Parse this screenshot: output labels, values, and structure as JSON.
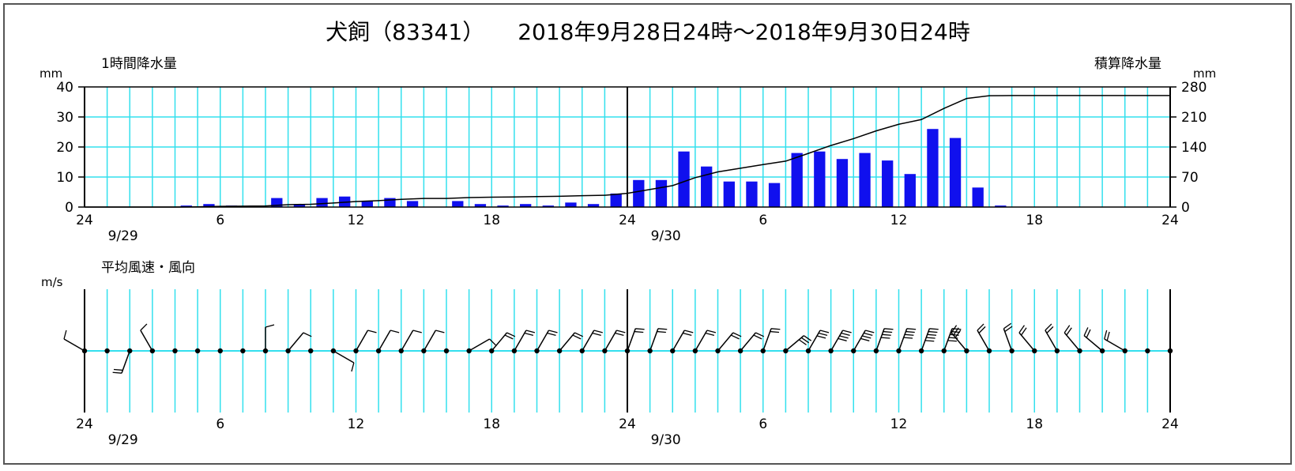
{
  "title": "犬飼（83341）　　2018年9月28日24時～2018年9月30日24時",
  "rain_panel": {
    "left_label": "1時間降水量",
    "right_label": "積算降水量",
    "left_unit": "mm",
    "right_unit": "mm",
    "left_ticks": [
      "0",
      "10",
      "20",
      "30",
      "40"
    ],
    "right_ticks": [
      "0",
      "70",
      "140",
      "210",
      "280"
    ]
  },
  "wind_panel": {
    "label": "平均風速・風向",
    "unit": "m/s"
  },
  "x_axis": {
    "hour_ticks": [
      "24",
      "6",
      "12",
      "18",
      "24",
      "6",
      "12",
      "18",
      "24"
    ],
    "date_labels": [
      "9/29",
      "9/30"
    ]
  },
  "chart_data": [
    {
      "type": "bar",
      "title": "1時間降水量",
      "ylabel": "mm",
      "ylim": [
        0,
        40
      ],
      "x_hours_since_9_29_00": [
        1,
        2,
        3,
        4,
        5,
        6,
        7,
        8,
        9,
        10,
        11,
        12,
        13,
        14,
        15,
        16,
        17,
        18,
        19,
        20,
        21,
        22,
        23,
        24,
        25,
        26,
        27,
        28,
        29,
        30,
        31,
        32,
        33,
        34,
        35,
        36,
        37,
        38,
        39,
        40,
        41,
        42,
        43,
        44,
        45,
        46,
        47,
        48
      ],
      "values": [
        0,
        0,
        0,
        0,
        0.5,
        1,
        0.5,
        0.5,
        3,
        1,
        3,
        3.5,
        2,
        3,
        2,
        0,
        2,
        1,
        0.5,
        1,
        0.5,
        1.5,
        1,
        4.5,
        9,
        9,
        18.5,
        13.5,
        8.5,
        8.5,
        8,
        18,
        18.5,
        16,
        18,
        15.5,
        11,
        26,
        23,
        6.5,
        0.5,
        0,
        0,
        0,
        0,
        0,
        0,
        0
      ]
    },
    {
      "type": "line",
      "title": "積算降水量",
      "ylabel": "mm",
      "ylim": [
        0,
        280
      ],
      "x_hours_since_9_29_00": [
        0,
        1,
        2,
        3,
        4,
        5,
        6,
        7,
        8,
        9,
        10,
        11,
        12,
        13,
        14,
        15,
        16,
        17,
        18,
        19,
        20,
        21,
        22,
        23,
        24,
        25,
        26,
        27,
        28,
        29,
        30,
        31,
        32,
        33,
        34,
        35,
        36,
        37,
        38,
        39,
        40,
        41,
        42,
        43,
        44,
        45,
        46,
        47,
        48
      ],
      "values": [
        0,
        0,
        0,
        0,
        0,
        0.5,
        1.5,
        2,
        2.5,
        5.5,
        6.5,
        9.5,
        13,
        15,
        18,
        20,
        20,
        22,
        23,
        23.5,
        24.5,
        25,
        26.5,
        27.5,
        32,
        41,
        50,
        68.5,
        82,
        90.5,
        99,
        107,
        125,
        143.5,
        159.5,
        177.5,
        193,
        204,
        230,
        253,
        259.5,
        260,
        260,
        260,
        260,
        260,
        260,
        260,
        260
      ]
    },
    {
      "type": "wind-barb",
      "title": "平均風速・風向",
      "ylabel": "m/s",
      "x_hours_since_9_29_00": [
        0,
        1,
        2,
        3,
        4,
        5,
        6,
        7,
        8,
        9,
        10,
        11,
        12,
        13,
        14,
        15,
        16,
        17,
        18,
        19,
        20,
        21,
        22,
        23,
        24,
        25,
        26,
        27,
        28,
        29,
        30,
        31,
        32,
        33,
        34,
        35,
        36,
        37,
        38,
        39,
        40,
        41,
        42,
        43,
        44,
        45,
        46,
        47,
        48
      ],
      "direction_deg": [
        300,
        240,
        200,
        330,
        0,
        0,
        0,
        0,
        0,
        40,
        180,
        120,
        30,
        30,
        30,
        30,
        0,
        60,
        40,
        30,
        30,
        40,
        30,
        30,
        20,
        20,
        30,
        30,
        40,
        40,
        20,
        50,
        30,
        30,
        30,
        20,
        20,
        20,
        20,
        320,
        330,
        340,
        320,
        330,
        320,
        310,
        300,
        0,
        0
      ],
      "barbs": [
        1,
        0,
        2,
        1,
        0,
        0,
        0,
        0,
        1,
        1,
        0,
        1,
        1,
        1,
        1,
        1,
        0,
        1,
        2,
        2,
        2,
        2,
        2,
        2,
        2,
        2,
        2,
        2,
        2,
        2,
        2,
        3,
        3,
        4,
        4,
        4,
        4,
        5,
        5,
        3,
        2,
        2,
        2,
        2,
        2,
        2,
        2,
        0,
        0
      ]
    }
  ]
}
